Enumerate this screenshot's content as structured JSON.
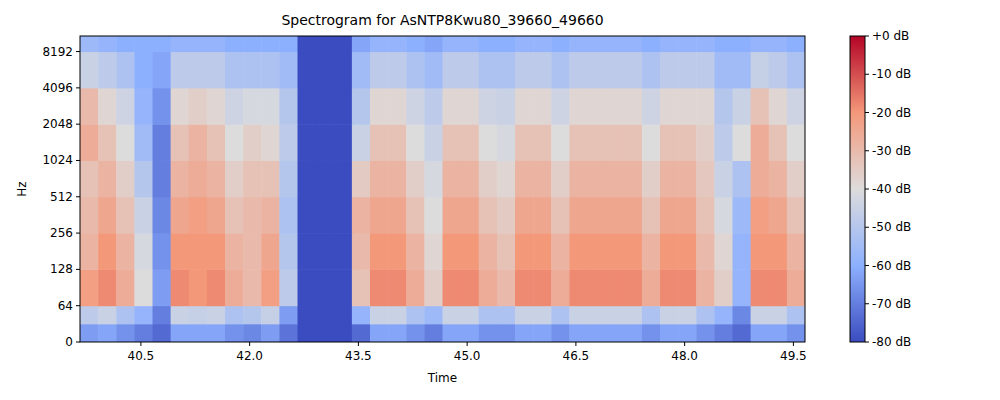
{
  "chart_data": {
    "type": "heatmap",
    "title": "Spectrogram for AsNTP8Kwu80_39660_49660",
    "x_label": "Time",
    "y_label": "Hz",
    "log": "y",
    "xlim": [
      39.66,
      49.66
    ],
    "xticks": [
      40.5,
      {
        "value": 42,
        "label": "42.0"
      },
      43.5,
      {
        "value": 45,
        "label": "45.0"
      },
      46.5,
      {
        "value": 48,
        "label": "48.0"
      },
      49.5
    ],
    "ylim": [
      0,
      11025
    ],
    "yticks": [
      0,
      64,
      128,
      256,
      512,
      1024,
      2048,
      4096,
      8192
    ],
    "zlim": [
      -80,
      0
    ],
    "zticks": [
      {
        "value": 0,
        "label": "+0 dB"
      },
      {
        "value": -10,
        "label": "-10 dB"
      },
      {
        "value": -20,
        "label": "-20 dB"
      },
      {
        "value": -30,
        "label": "-30 dB"
      },
      {
        "value": -40,
        "label": "-40 dB"
      },
      {
        "value": -50,
        "label": "-50 dB"
      },
      {
        "value": -60,
        "label": "-60 dB"
      },
      {
        "value": -70,
        "label": "-70 dB"
      },
      {
        "value": -80,
        "label": "-80 dB"
      }
    ],
    "x_bins": [
      39.66,
      39.91,
      40.16,
      40.41,
      40.66,
      40.91,
      41.16,
      41.41,
      41.66,
      41.91,
      42.16,
      42.41,
      42.66,
      42.91,
      43.16,
      43.41,
      43.66,
      43.91,
      44.16,
      44.41,
      44.66,
      44.91,
      45.16,
      45.41,
      45.66,
      45.91,
      46.16,
      46.41,
      46.66,
      46.91,
      47.16,
      47.41,
      47.66,
      47.91,
      48.16,
      48.41,
      48.66,
      48.91,
      49.16,
      49.41,
      49.66
    ],
    "y_bins": [
      0,
      32,
      64,
      128,
      256,
      512,
      1024,
      2048,
      4096,
      8192,
      11025
    ],
    "cells": [
      [
        -64,
        -62,
        -66,
        -70,
        -74,
        -62,
        -62,
        -62,
        -66,
        -68,
        -64,
        -72,
        -80,
        -80,
        -80,
        -74,
        -62,
        -62,
        -66,
        -70,
        -62,
        -62,
        -66,
        -66,
        -62,
        -62,
        -66,
        -62,
        -62,
        -62,
        -62,
        -66,
        -62,
        -62,
        -66,
        -70,
        -74,
        -62,
        -62,
        -66
      ],
      [
        -48,
        -45,
        -52,
        -58,
        -70,
        -45,
        -46,
        -45,
        -52,
        -50,
        -46,
        -64,
        -80,
        -80,
        -80,
        -58,
        -45,
        -45,
        -52,
        -56,
        -45,
        -45,
        -52,
        -52,
        -45,
        -45,
        -52,
        -45,
        -45,
        -45,
        -45,
        -52,
        -45,
        -45,
        -52,
        -58,
        -68,
        -45,
        -45,
        -52
      ],
      [
        -22,
        -18,
        -26,
        -40,
        -64,
        -18,
        -20,
        -18,
        -26,
        -30,
        -22,
        -48,
        -80,
        -80,
        -80,
        -32,
        -18,
        -18,
        -26,
        -36,
        -18,
        -18,
        -26,
        -30,
        -18,
        -18,
        -26,
        -18,
        -18,
        -18,
        -18,
        -26,
        -18,
        -18,
        -28,
        -36,
        -58,
        -18,
        -18,
        -26
      ],
      [
        -28,
        -20,
        -28,
        -42,
        -66,
        -20,
        -20,
        -20,
        -28,
        -30,
        -24,
        -50,
        -80,
        -80,
        -80,
        -30,
        -20,
        -20,
        -28,
        -38,
        -20,
        -20,
        -28,
        -32,
        -20,
        -20,
        -28,
        -20,
        -20,
        -20,
        -20,
        -28,
        -20,
        -20,
        -30,
        -38,
        -58,
        -20,
        -20,
        -28
      ],
      [
        -30,
        -24,
        -32,
        -45,
        -68,
        -24,
        -22,
        -24,
        -32,
        -30,
        -28,
        -52,
        -80,
        -80,
        -80,
        -28,
        -24,
        -24,
        -32,
        -40,
        -24,
        -24,
        -32,
        -35,
        -24,
        -24,
        -32,
        -24,
        -24,
        -24,
        -24,
        -32,
        -24,
        -24,
        -32,
        -42,
        -56,
        -22,
        -24,
        -32
      ],
      [
        -32,
        -28,
        -36,
        -50,
        -70,
        -28,
        -26,
        -28,
        -36,
        -32,
        -32,
        -50,
        -80,
        -80,
        -80,
        -35,
        -28,
        -28,
        -36,
        -42,
        -28,
        -28,
        -36,
        -38,
        -28,
        -28,
        -36,
        -28,
        -28,
        -28,
        -28,
        -36,
        -28,
        -28,
        -34,
        -45,
        -52,
        -26,
        -28,
        -36
      ],
      [
        -26,
        -32,
        -40,
        -55,
        -70,
        -32,
        -28,
        -32,
        -40,
        -36,
        -38,
        -48,
        -80,
        -80,
        -80,
        -45,
        -32,
        -32,
        -40,
        -45,
        -32,
        -32,
        -40,
        -42,
        -32,
        -32,
        -40,
        -32,
        -32,
        -32,
        -32,
        -40,
        -32,
        -32,
        -36,
        -48,
        -40,
        -26,
        -32,
        -40
      ],
      [
        -30,
        -38,
        -44,
        -58,
        -66,
        -38,
        -36,
        -38,
        -44,
        -42,
        -42,
        -50,
        -80,
        -80,
        -80,
        -50,
        -38,
        -38,
        -44,
        -48,
        -38,
        -38,
        -44,
        -45,
        -38,
        -38,
        -44,
        -38,
        -38,
        -38,
        -38,
        -44,
        -38,
        -38,
        -38,
        -50,
        -45,
        -32,
        -38,
        -44
      ],
      [
        -45,
        -48,
        -52,
        -60,
        -62,
        -48,
        -48,
        -48,
        -52,
        -52,
        -52,
        -55,
        -80,
        -80,
        -80,
        -55,
        -48,
        -48,
        -52,
        -55,
        -48,
        -48,
        -52,
        -52,
        -48,
        -48,
        -52,
        -48,
        -48,
        -48,
        -48,
        -52,
        -48,
        -48,
        -48,
        -55,
        -55,
        -46,
        -48,
        -52
      ],
      [
        -56,
        -58,
        -60,
        -60,
        -60,
        -58,
        -58,
        -58,
        -60,
        -60,
        -60,
        -60,
        -80,
        -80,
        -80,
        -62,
        -58,
        -58,
        -60,
        -62,
        -58,
        -58,
        -60,
        -60,
        -58,
        -58,
        -60,
        -58,
        -58,
        -58,
        -58,
        -60,
        -58,
        -58,
        -58,
        -60,
        -60,
        -58,
        -58,
        -60
      ]
    ]
  }
}
